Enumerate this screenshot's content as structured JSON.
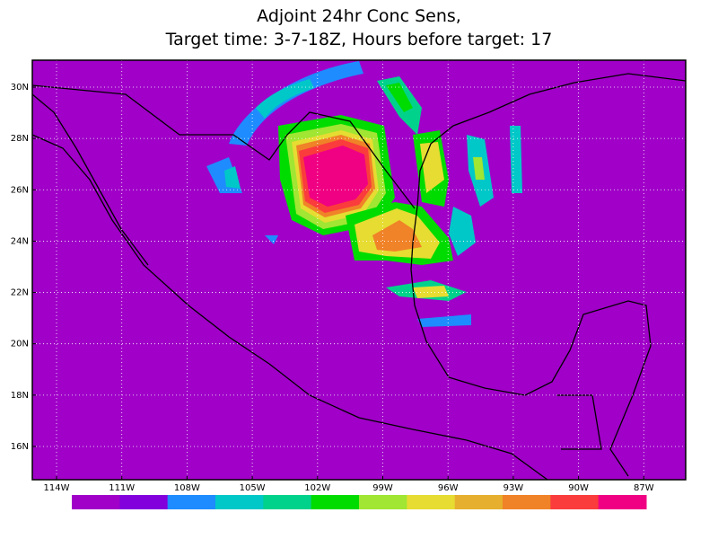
{
  "map": {
    "title": [
      "Adjoint 24hr Conc Sens,",
      "Target time: 3-7-18Z, Hours before target: 17"
    ],
    "lat_ticks": [
      {
        "value": 30,
        "label": "30N"
      },
      {
        "value": 28,
        "label": "28N"
      },
      {
        "value": 26,
        "label": "26N"
      },
      {
        "value": 24,
        "label": "24N"
      },
      {
        "value": 22,
        "label": "22N"
      },
      {
        "value": 20,
        "label": "20N"
      },
      {
        "value": 18,
        "label": "18N"
      },
      {
        "value": 16,
        "label": "16N"
      }
    ],
    "lon_ticks": [
      {
        "value": -114,
        "label": "114W"
      },
      {
        "value": -111,
        "label": "111W"
      },
      {
        "value": -108,
        "label": "108W"
      },
      {
        "value": -105,
        "label": "105W"
      },
      {
        "value": -102,
        "label": "102W"
      },
      {
        "value": -99,
        "label": "99W"
      },
      {
        "value": -96,
        "label": "96W"
      },
      {
        "value": -93,
        "label": "93W"
      },
      {
        "value": -90,
        "label": "90W"
      },
      {
        "value": -87,
        "label": "87W"
      }
    ],
    "grid": true,
    "colorbar": [
      "#a000c8",
      "#8200dc",
      "#1e8cff",
      "#00c8c8",
      "#00d28c",
      "#00dc00",
      "#a0e632",
      "#e6dc32",
      "#e6af2d",
      "#f08228",
      "#fa3c3c",
      "#f00082"
    ]
  }
}
